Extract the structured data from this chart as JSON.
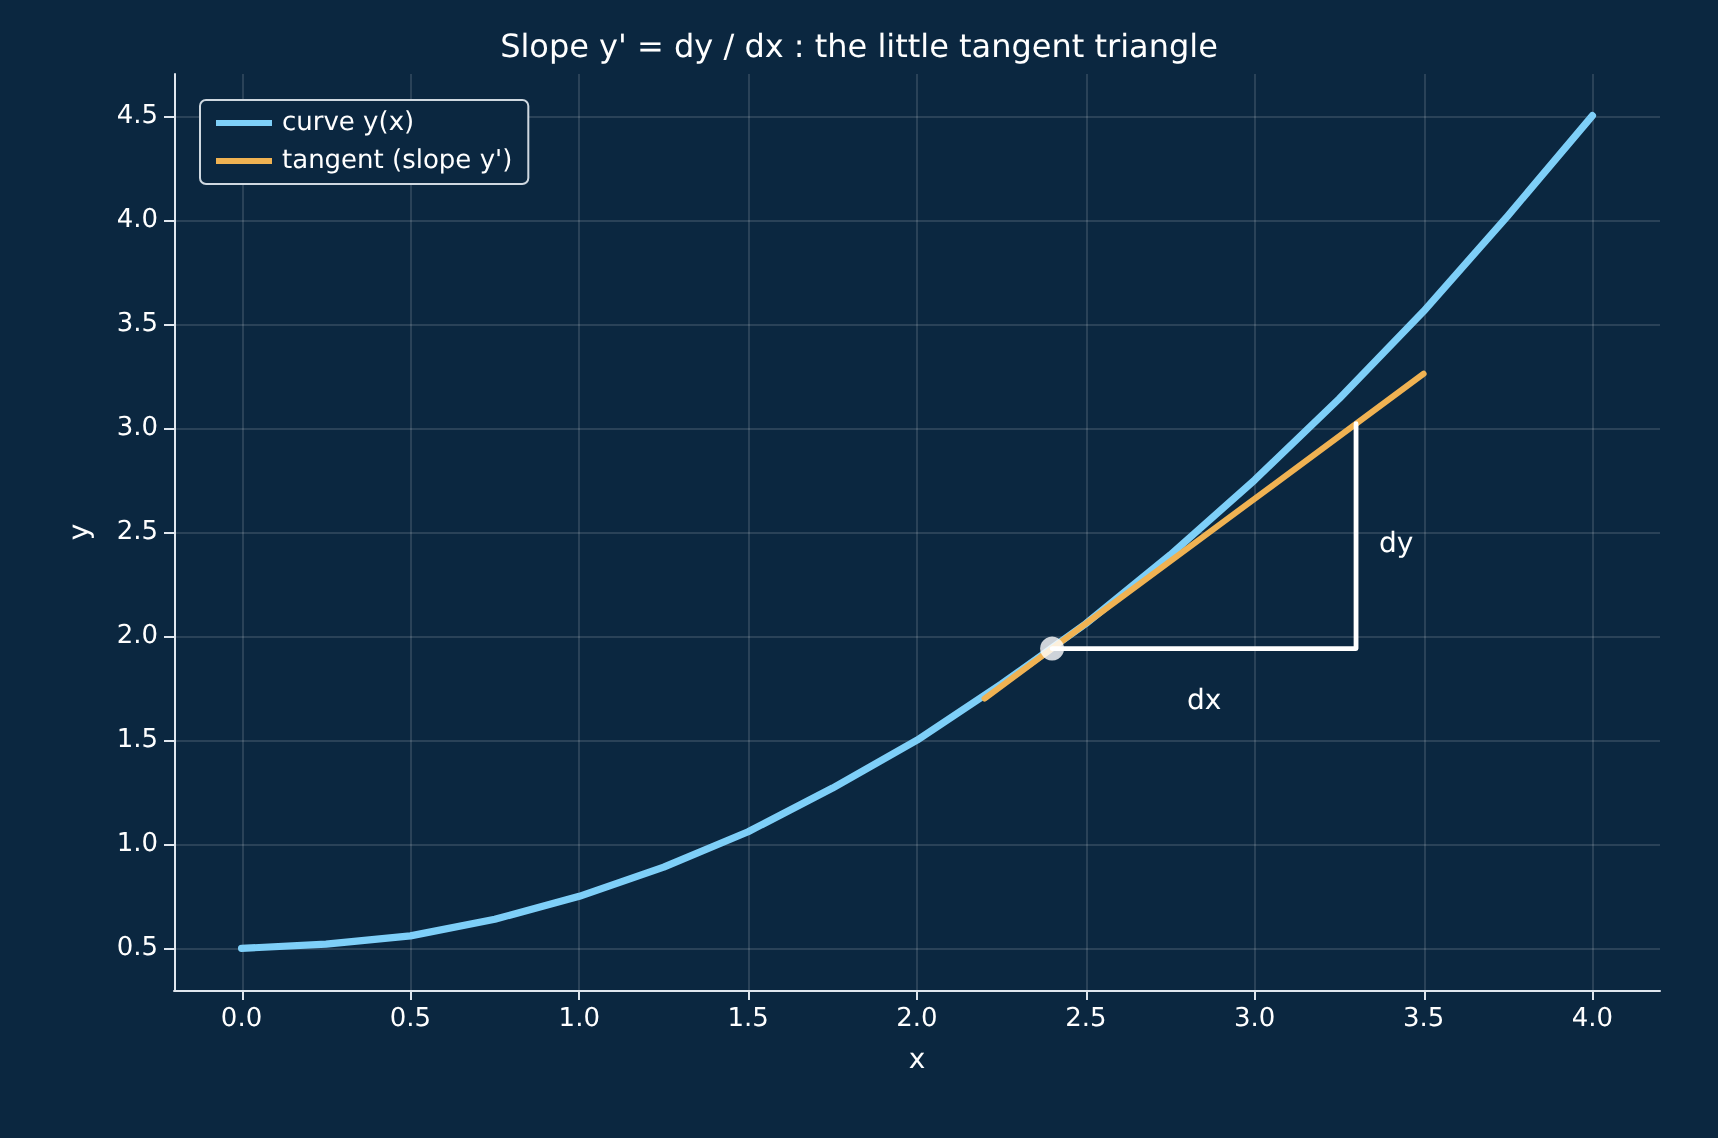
{
  "chart_data": {
    "type": "line",
    "title": "Slope y' = dy / dx : the little tangent triangle",
    "xlabel": "x",
    "ylabel": "y",
    "xlim": [
      -0.2,
      4.2
    ],
    "ylim": [
      0.3,
      4.7
    ],
    "xticks": [
      {
        "value": 0,
        "label": "0.0"
      },
      {
        "value": 0.5,
        "label": "0.5"
      },
      {
        "value": 1,
        "label": "1.0"
      },
      {
        "value": 1.5,
        "label": "1.5"
      },
      {
        "value": 2,
        "label": "2.0"
      },
      {
        "value": 2.5,
        "label": "2.5"
      },
      {
        "value": 3,
        "label": "3.0"
      },
      {
        "value": 3.5,
        "label": "3.5"
      },
      {
        "value": 4,
        "label": "4.0"
      }
    ],
    "yticks": [
      {
        "value": 0.5,
        "label": "0.5"
      },
      {
        "value": 1,
        "label": "1.0"
      },
      {
        "value": 1.5,
        "label": "1.5"
      },
      {
        "value": 2,
        "label": "2.0"
      },
      {
        "value": 2.5,
        "label": "2.5"
      },
      {
        "value": 3,
        "label": "3.0"
      },
      {
        "value": 3.5,
        "label": "3.5"
      },
      {
        "value": 4,
        "label": "4.0"
      },
      {
        "value": 4.5,
        "label": "4.5"
      }
    ],
    "series": [
      {
        "name": "curve y(x)",
        "color": "#7ecff8",
        "x": [
          0,
          0.25,
          0.5,
          0.75,
          1,
          1.25,
          1.5,
          1.75,
          2,
          2.25,
          2.5,
          2.75,
          3,
          3.25,
          3.5,
          3.75,
          4
        ],
        "values": [
          0.5,
          0.52,
          0.56,
          0.64,
          0.75,
          0.89,
          1.06,
          1.27,
          1.5,
          1.77,
          2.06,
          2.39,
          2.75,
          3.14,
          3.56,
          4.02,
          4.5
        ]
      },
      {
        "name": "tangent (slope y')",
        "color": "#f0b252",
        "x": [
          2.2,
          3.5
        ],
        "values": [
          1.7,
          3.26
        ]
      },
      {
        "color": "#ffffff",
        "x": [
          2.4,
          3.3,
          3.3
        ],
        "values": [
          1.94,
          1.94,
          3.02
        ]
      },
      {
        "type": "scatter",
        "color": "#ffffff",
        "marker": "circle",
        "x": [
          2.4
        ],
        "values": [
          1.94
        ]
      }
    ],
    "annotations": [
      "dx",
      "dy"
    ],
    "grid": true,
    "legend": "top left",
    "marker": "none",
    "line_style": "solid"
  }
}
